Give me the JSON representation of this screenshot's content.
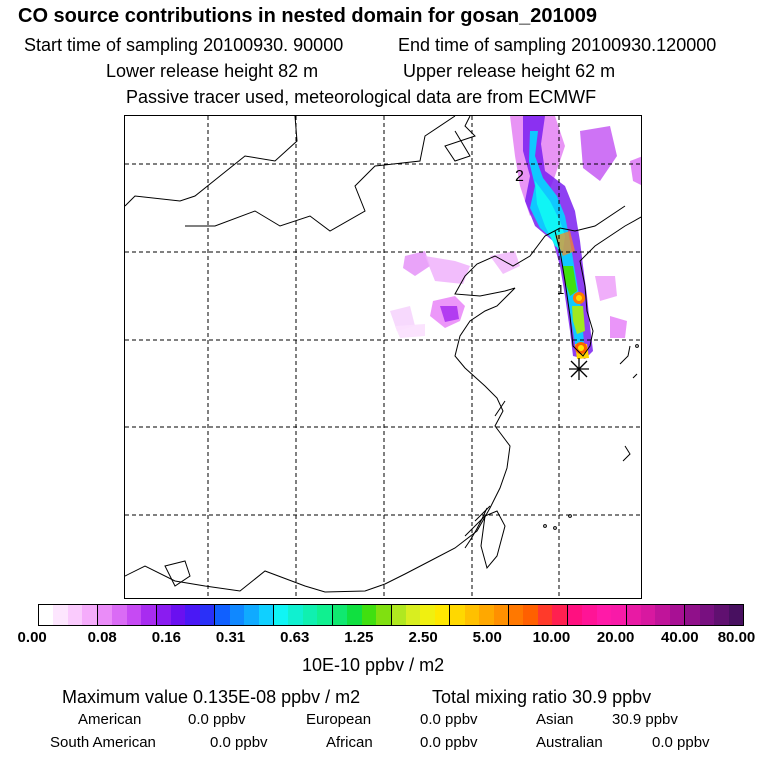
{
  "header": {
    "title": "CO  source contributions in nested domain for gosan_201009",
    "start_label": "Start time of sampling 20100930. 90000",
    "end_label": "End time of sampling 20100930.120000",
    "lower_label": "Lower release height   82 m",
    "upper_label": "Upper release height   62 m",
    "tracer_note": "Passive tracer used, meteorological data are from ECMWF"
  },
  "map": {
    "contour_labels": [
      "2",
      "1"
    ],
    "receptor_marker": "asterisk",
    "colors": {
      "coast": "#000000",
      "grid": "#000000"
    }
  },
  "colorbar": {
    "ticks": [
      "0.00",
      "0.08",
      "0.16",
      "0.31",
      "0.63",
      "1.25",
      "2.50",
      "5.00",
      "10.00",
      "20.00",
      "40.00",
      "80.00"
    ],
    "units": "10E-10 ppbv / m2",
    "colors": [
      "#ffffff",
      "#fde6fe",
      "#facbfd",
      "#f5acfb",
      "#ea8cf8",
      "#da6bf5",
      "#c64af3",
      "#a82cf0",
      "#8a1cf0",
      "#6a10f0",
      "#4a18f5",
      "#2a30f8",
      "#1060ff",
      "#1088ff",
      "#10aaff",
      "#10d0ff",
      "#10f5f5",
      "#10f0d0",
      "#10f0b0",
      "#10f090",
      "#10e870",
      "#10e040",
      "#40e010",
      "#80e010",
      "#b0e820",
      "#d8ee20",
      "#f0f010",
      "#ffe800",
      "#ffd800",
      "#ffc000",
      "#ffa800",
      "#ff9000",
      "#ff7800",
      "#ff6000",
      "#ff3a2a",
      "#ff2050",
      "#ff1080",
      "#ff1496",
      "#ff1aa8",
      "#f81aa8",
      "#e81aa4",
      "#d818a0",
      "#c0149a",
      "#a81094",
      "#90108a",
      "#781080",
      "#601070",
      "#481060"
    ]
  },
  "stats": {
    "max_label": "Maximum value  0.135E-08 ppbv / m2",
    "total_label": "Total mixing ratio      30.9 ppbv",
    "rows": [
      [
        {
          "name": "American",
          "value": "0.0 ppbv"
        },
        {
          "name": "European",
          "value": "0.0 ppbv"
        },
        {
          "name": "Asian",
          "value": "30.9 ppbv"
        }
      ],
      [
        {
          "name": "South American",
          "value": "0.0 ppbv"
        },
        {
          "name": "African",
          "value": "0.0 ppbv"
        },
        {
          "name": "Australian",
          "value": "0.0 ppbv"
        }
      ]
    ]
  }
}
